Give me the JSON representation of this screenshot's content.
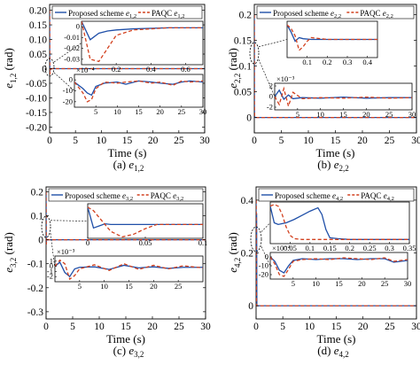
{
  "figure": {
    "captions": [
      {
        "label": "(a)",
        "var": "e",
        "sub": "1,2"
      },
      {
        "label": "(b)",
        "var": "e",
        "sub": "2,2"
      },
      {
        "label": "(c)",
        "var": "e",
        "sub": "3,2"
      },
      {
        "label": "(d)",
        "var": "e",
        "sub": "4,2"
      }
    ]
  },
  "colors": {
    "proposed": "#1f4fa8",
    "paqc": "#d2401e",
    "axis": "#000000"
  },
  "chart_data": [
    {
      "type": "line",
      "panel": "a",
      "ylabel_var": "e",
      "ylabel_sub": "1,2",
      "ylabel_unit": "(rad)",
      "xlabel": "Time (s)",
      "xlim": [
        0,
        30
      ],
      "ylim": [
        -0.22,
        0.22
      ],
      "xticks": [
        "0",
        "5",
        "10",
        "15",
        "20",
        "25",
        "30"
      ],
      "yticks": [
        "0.20",
        "0.15",
        "0.10",
        "0.05",
        "0",
        "-0.05",
        "-0.10",
        "-0.15",
        "-0.20"
      ],
      "legend": [
        {
          "name": "Proposed scheme",
          "var": "e",
          "sub": "1,2"
        },
        {
          "name": "PAQC",
          "var": "e",
          "sub": "1,2"
        }
      ],
      "series": [
        {
          "name": "Proposed scheme",
          "x": [
            0,
            0.02,
            0.05,
            0.1,
            0.3,
            30
          ],
          "y": [
            0.2,
            0.05,
            -0.01,
            -0.005,
            0,
            0
          ]
        },
        {
          "name": "PAQC",
          "x": [
            0,
            0.02,
            0.05,
            0.1,
            0.3,
            30
          ],
          "y": [
            0.2,
            0.03,
            -0.02,
            -0.01,
            0,
            0
          ]
        }
      ],
      "inset1": {
        "xlim": [
          0,
          0.7
        ],
        "ylim": [
          -0.035,
          0.005
        ],
        "xticks": [
          "0.2",
          "0.4",
          "0.6"
        ],
        "yticks": [
          "0",
          "-0.01",
          "-0.02",
          "-0.03"
        ],
        "series": [
          {
            "name": "Proposed scheme",
            "x": [
              0,
              0.05,
              0.1,
              0.15,
              0.2,
              0.3,
              0.5,
              0.7
            ],
            "y": [
              0.005,
              -0.012,
              -0.006,
              -0.004,
              -0.003,
              -0.002,
              -0.001,
              -0.001
            ]
          },
          {
            "name": "PAQC",
            "x": [
              0,
              0.05,
              0.1,
              0.15,
              0.2,
              0.3,
              0.5,
              0.7
            ],
            "y": [
              0.005,
              -0.03,
              -0.032,
              -0.02,
              -0.008,
              -0.003,
              -0.001,
              -0.001
            ]
          }
        ]
      },
      "inset2": {
        "exponent": "×10⁻⁴",
        "xlim": [
          0,
          30
        ],
        "ylim": [
          -25,
          5
        ],
        "xticks": [
          "5",
          "10",
          "15",
          "20",
          "25",
          "30"
        ],
        "yticks": [
          "0",
          "-10",
          "-20"
        ],
        "series": [
          {
            "name": "Proposed scheme",
            "x": [
              0,
              2,
              3,
              4,
              5,
              7,
              10,
              12,
              15,
              18,
              20,
              23,
              25,
              27,
              30
            ],
            "y": [
              -2,
              -8,
              -12,
              -14,
              -6,
              -3,
              -2,
              -4,
              -1,
              -2,
              -3,
              -4,
              -2,
              -1,
              -2
            ]
          },
          {
            "name": "PAQC",
            "x": [
              0,
              2,
              3,
              4,
              5,
              7,
              10,
              12,
              15,
              18,
              20,
              23,
              25,
              27,
              30
            ],
            "y": [
              -2,
              -12,
              -20,
              -18,
              -8,
              -2,
              -3,
              -2,
              -1,
              -3,
              -2,
              -5,
              -1,
              -2,
              -1
            ]
          }
        ]
      }
    },
    {
      "type": "line",
      "panel": "b",
      "ylabel_var": "e",
      "ylabel_sub": "2,2",
      "ylabel_unit": "(rad)",
      "xlabel": "Time (s)",
      "xlim": [
        0,
        30
      ],
      "ylim": [
        -0.03,
        0.22
      ],
      "xticks": [
        "0",
        "5",
        "10",
        "15",
        "20",
        "25",
        "30"
      ],
      "yticks": [
        "0.2",
        "0.15",
        "0.1",
        "0.05",
        "0"
      ],
      "legend": [
        {
          "name": "Proposed scheme",
          "var": "e",
          "sub": "2,2"
        },
        {
          "name": "PAQC",
          "var": "e",
          "sub": "2,2"
        }
      ],
      "series": [
        {
          "name": "Proposed scheme",
          "x": [
            0,
            0.02,
            0.05,
            0.1,
            30
          ],
          "y": [
            0.2,
            0.02,
            0,
            0,
            0
          ]
        },
        {
          "name": "PAQC",
          "x": [
            0,
            0.02,
            0.05,
            0.1,
            30
          ],
          "y": [
            0.2,
            0.03,
            0.005,
            0,
            0
          ]
        }
      ],
      "inset1": {
        "xlim": [
          0,
          0.45
        ],
        "ylim": [
          -0.05,
          0.05
        ],
        "xticks": [
          "0.1",
          "0.2",
          "0.3",
          "0.4"
        ],
        "yticks": [],
        "series": [
          {
            "name": "Proposed scheme",
            "x": [
              0,
              0.02,
              0.04,
              0.06,
              0.08,
              0.12,
              0.2,
              0.3,
              0.45
            ],
            "y": [
              0.04,
              0.02,
              -0.005,
              0.005,
              0.002,
              0,
              0,
              0,
              0
            ]
          },
          {
            "name": "PAQC",
            "x": [
              0,
              0.02,
              0.04,
              0.06,
              0.08,
              0.1,
              0.12,
              0.2,
              0.45
            ],
            "y": [
              0.04,
              0.03,
              0.01,
              -0.03,
              -0.02,
              -0.005,
              0.005,
              0,
              0
            ]
          }
        ]
      },
      "inset2": {
        "exponent": "×10⁻³",
        "xlim": [
          0,
          30
        ],
        "ylim": [
          -2.5,
          2.5
        ],
        "xticks": [
          "5",
          "10",
          "15",
          "20",
          "25",
          "30"
        ],
        "yticks": [
          "2",
          "0",
          "-2"
        ],
        "series": [
          {
            "name": "Proposed scheme",
            "x": [
              0,
              1,
              2,
              3,
              4,
              6,
              10,
              15,
              20,
              25,
              30
            ],
            "y": [
              0,
              1.2,
              -0.5,
              0.3,
              -0.4,
              -0.2,
              -0.3,
              -0.1,
              -0.3,
              -0.2,
              -0.2
            ]
          },
          {
            "name": "PAQC",
            "x": [
              0,
              1,
              2,
              3,
              4,
              6,
              10,
              15,
              20,
              25,
              30
            ],
            "y": [
              0,
              -1.5,
              1.5,
              -1.8,
              0.8,
              -0.4,
              -0.2,
              -0.3,
              -0.1,
              -0.3,
              -0.2
            ]
          }
        ]
      }
    },
    {
      "type": "line",
      "panel": "c",
      "ylabel_var": "e",
      "ylabel_sub": "3,2",
      "ylabel_unit": "(rad)",
      "xlabel": "Time (s)",
      "xlim": [
        0,
        30
      ],
      "ylim": [
        -0.33,
        0.22
      ],
      "xticks": [
        "0",
        "5",
        "10",
        "15",
        "20",
        "25",
        "30"
      ],
      "yticks": [
        "0.2",
        "0.1",
        "0",
        "-0.1",
        "-0.2",
        "-0.3"
      ],
      "legend": [
        {
          "name": "Proposed scheme",
          "var": "e",
          "sub": "3,2"
        },
        {
          "name": "PAQC",
          "var": "e",
          "sub": "3,2"
        }
      ],
      "series": [
        {
          "name": "Proposed scheme",
          "x": [
            0,
            0.02,
            0.05,
            0.1,
            30
          ],
          "y": [
            0.2,
            0.02,
            -0.01,
            0,
            0
          ]
        },
        {
          "name": "PAQC",
          "x": [
            0,
            0.02,
            0.05,
            0.1,
            30
          ],
          "y": [
            0.2,
            0.04,
            -0.02,
            0,
            0
          ]
        }
      ],
      "inset1": {
        "xlim": [
          0,
          0.1
        ],
        "ylim": [
          -0.02,
          0.03
        ],
        "xticks": [
          "0",
          "0.05",
          "0.1"
        ],
        "yticks": [],
        "series": [
          {
            "name": "Proposed scheme",
            "x": [
              0,
              0.005,
              0.01,
              0.015,
              0.02,
              0.03,
              0.05,
              0.08,
              0.1
            ],
            "y": [
              0.025,
              -0.005,
              -0.002,
              0.001,
              0,
              0,
              0,
              0,
              0
            ]
          },
          {
            "name": "PAQC",
            "x": [
              0,
              0.005,
              0.01,
              0.02,
              0.03,
              0.04,
              0.05,
              0.06,
              0.1
            ],
            "y": [
              0.025,
              0.02,
              0.01,
              -0.01,
              -0.018,
              -0.014,
              -0.006,
              0,
              0
            ]
          }
        ]
      },
      "inset2": {
        "exponent": "×10⁻³",
        "xlim": [
          0,
          30
        ],
        "ylim": [
          -3,
          2
        ],
        "xticks": [
          "5",
          "10",
          "15",
          "20",
          "25"
        ],
        "yticks": [
          "1",
          "0",
          "-1",
          "-2"
        ],
        "series": [
          {
            "name": "Proposed scheme",
            "x": [
              0,
              1,
              2,
              3,
              4,
              5,
              8,
              11,
              14,
              17,
              20,
              23,
              26,
              30
            ],
            "y": [
              0,
              0.8,
              -1.2,
              -2,
              -0.5,
              -0.2,
              -0.1,
              -0.6,
              0.2,
              -0.3,
              -0.1,
              -0.4,
              -0.2,
              -0.2
            ]
          },
          {
            "name": "PAQC",
            "x": [
              0,
              1,
              2,
              3,
              4,
              5,
              8,
              11,
              14,
              17,
              20,
              23,
              26,
              30
            ],
            "y": [
              0,
              1.2,
              0.5,
              -2.5,
              -1.8,
              -0.5,
              0.3,
              -0.8,
              0.5,
              -0.6,
              0.2,
              -0.5,
              0.1,
              -0.3
            ]
          }
        ]
      }
    },
    {
      "type": "line",
      "panel": "d",
      "ylabel_var": "e",
      "ylabel_sub": "4,2",
      "ylabel_unit": "(rad)",
      "xlabel": "Time (s)",
      "xlim": [
        0,
        30
      ],
      "ylim": [
        -0.05,
        0.45
      ],
      "xticks": [
        "0",
        "5",
        "10",
        "15",
        "20",
        "25",
        "30"
      ],
      "yticks": [
        "0.4",
        "0.2",
        "0"
      ],
      "legend": [
        {
          "name": "Proposed scheme",
          "var": "e",
          "sub": "4,2"
        },
        {
          "name": "PAQC",
          "var": "e",
          "sub": "4,2"
        }
      ],
      "series": [
        {
          "name": "Proposed scheme",
          "x": [
            0,
            0.02,
            0.1,
            0.15,
            30
          ],
          "y": [
            0.4,
            0.2,
            0.35,
            0,
            0
          ]
        },
        {
          "name": "PAQC",
          "x": [
            0,
            0.02,
            0.05,
            0.1,
            30
          ],
          "y": [
            0.4,
            0.4,
            0.05,
            0,
            0
          ]
        }
      ],
      "inset1": {
        "xlim": [
          0,
          0.35
        ],
        "ylim": [
          -0.05,
          0.45
        ],
        "xticks": [
          "0.05",
          "0.1",
          "0.15",
          "0.2",
          "0.25",
          "0.3",
          "0.35"
        ],
        "yticks": [],
        "series": [
          {
            "name": "Proposed scheme",
            "x": [
              0,
              0.01,
              0.02,
              0.04,
              0.06,
              0.08,
              0.1,
              0.12,
              0.13,
              0.14,
              0.15,
              0.17,
              0.2,
              0.35
            ],
            "y": [
              0.4,
              0.2,
              0.18,
              0.2,
              0.24,
              0.29,
              0.34,
              0.38,
              0.3,
              0.12,
              0.02,
              0.01,
              0,
              0
            ]
          },
          {
            "name": "PAQC",
            "x": [
              0,
              0.01,
              0.02,
              0.03,
              0.04,
              0.05,
              0.06,
              0.08,
              0.1,
              0.15,
              0.35
            ],
            "y": [
              0.4,
              0.42,
              0.4,
              0.3,
              0.15,
              0.05,
              0.01,
              0,
              0,
              0,
              0
            ]
          }
        ]
      },
      "inset2": {
        "exponent": "×10⁻⁴",
        "xlim": [
          0,
          30
        ],
        "ylim": [
          -25,
          5
        ],
        "xticks": [
          "5",
          "10",
          "15",
          "20",
          "25",
          "30"
        ],
        "yticks": [
          "0",
          "-10",
          "-20"
        ],
        "series": [
          {
            "name": "Proposed scheme",
            "x": [
              0,
              1,
              2,
              3,
              4,
              5,
              7,
              10,
              13,
              16,
              19,
              22,
              25,
              27,
              30
            ],
            "y": [
              0,
              -5,
              -15,
              -18,
              -10,
              -4,
              -2,
              -3,
              -2,
              -2,
              -3,
              -2,
              -2,
              -6,
              -4
            ]
          },
          {
            "name": "PAQC",
            "x": [
              0,
              1,
              2,
              3,
              4,
              5,
              7,
              10,
              13,
              16,
              19,
              22,
              25,
              27,
              30
            ],
            "y": [
              0,
              -8,
              -20,
              -22,
              -14,
              -5,
              -3,
              -2,
              -3,
              -1,
              -2,
              -3,
              -1,
              -5,
              -3
            ]
          }
        ]
      }
    }
  ]
}
